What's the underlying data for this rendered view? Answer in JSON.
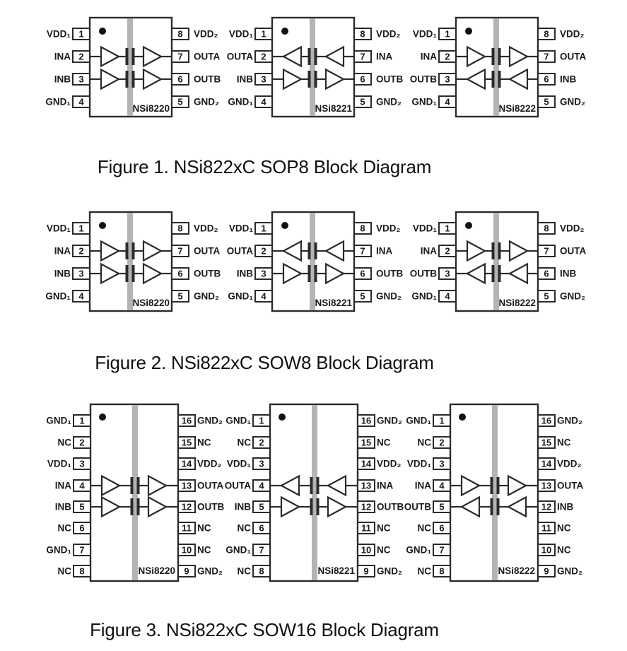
{
  "colors": {
    "line": "#2b2b2b",
    "barrier": "#b4b4b4",
    "body_fill": "#ffffff",
    "text": "#1a1a1a",
    "dot": "#111111",
    "background": "#ffffff"
  },
  "figures": [
    {
      "caption": "Figure 1. NSi822xC SOP8 Block Diagram",
      "pin_count": 8,
      "chips": [
        {
          "name": "NSi8220",
          "left_pins": [
            {
              "label": "VDD₁",
              "num": "1"
            },
            {
              "label": "INA",
              "num": "2"
            },
            {
              "label": "INB",
              "num": "3"
            },
            {
              "label": "GND₁",
              "num": "4"
            }
          ],
          "right_pins": [
            {
              "label": "VDD₂",
              "num": "8"
            },
            {
              "label": "OUTA",
              "num": "7"
            },
            {
              "label": "OUTB",
              "num": "6"
            },
            {
              "label": "GND₂",
              "num": "5"
            }
          ],
          "channels": [
            {
              "channel": "A",
              "direction": "left-to-right"
            },
            {
              "channel": "B",
              "direction": "left-to-right"
            }
          ]
        },
        {
          "name": "NSi8221",
          "left_pins": [
            {
              "label": "VDD₁",
              "num": "1"
            },
            {
              "label": "OUTA",
              "num": "2"
            },
            {
              "label": "INB",
              "num": "3"
            },
            {
              "label": "GND₁",
              "num": "4"
            }
          ],
          "right_pins": [
            {
              "label": "VDD₂",
              "num": "8"
            },
            {
              "label": "INA",
              "num": "7"
            },
            {
              "label": "OUTB",
              "num": "6"
            },
            {
              "label": "GND₂",
              "num": "5"
            }
          ],
          "channels": [
            {
              "channel": "A",
              "direction": "right-to-left"
            },
            {
              "channel": "B",
              "direction": "left-to-right"
            }
          ]
        },
        {
          "name": "NSi8222",
          "left_pins": [
            {
              "label": "VDD₁",
              "num": "1"
            },
            {
              "label": "INA",
              "num": "2"
            },
            {
              "label": "OUTB",
              "num": "3"
            },
            {
              "label": "GND₁",
              "num": "4"
            }
          ],
          "right_pins": [
            {
              "label": "VDD₂",
              "num": "8"
            },
            {
              "label": "OUTA",
              "num": "7"
            },
            {
              "label": "INB",
              "num": "6"
            },
            {
              "label": "GND₂",
              "num": "5"
            }
          ],
          "channels": [
            {
              "channel": "A",
              "direction": "left-to-right"
            },
            {
              "channel": "B",
              "direction": "right-to-left"
            }
          ]
        }
      ]
    },
    {
      "caption": "Figure 2. NSi822xC SOW8 Block Diagram",
      "pin_count": 8,
      "chips": [
        {
          "name": "NSi8220",
          "left_pins": [
            {
              "label": "VDD₁",
              "num": "1"
            },
            {
              "label": "INA",
              "num": "2"
            },
            {
              "label": "INB",
              "num": "3"
            },
            {
              "label": "GND₁",
              "num": "4"
            }
          ],
          "right_pins": [
            {
              "label": "VDD₂",
              "num": "8"
            },
            {
              "label": "OUTA",
              "num": "7"
            },
            {
              "label": "OUTB",
              "num": "6"
            },
            {
              "label": "GND₂",
              "num": "5"
            }
          ],
          "channels": [
            {
              "channel": "A",
              "direction": "left-to-right"
            },
            {
              "channel": "B",
              "direction": "left-to-right"
            }
          ]
        },
        {
          "name": "NSi8221",
          "left_pins": [
            {
              "label": "VDD₁",
              "num": "1"
            },
            {
              "label": "OUTA",
              "num": "2"
            },
            {
              "label": "INB",
              "num": "3"
            },
            {
              "label": "GND₁",
              "num": "4"
            }
          ],
          "right_pins": [
            {
              "label": "VDD₂",
              "num": "8"
            },
            {
              "label": "INA",
              "num": "7"
            },
            {
              "label": "OUTB",
              "num": "6"
            },
            {
              "label": "GND₂",
              "num": "5"
            }
          ],
          "channels": [
            {
              "channel": "A",
              "direction": "right-to-left"
            },
            {
              "channel": "B",
              "direction": "left-to-right"
            }
          ]
        },
        {
          "name": "NSi8222",
          "left_pins": [
            {
              "label": "VDD₁",
              "num": "1"
            },
            {
              "label": "INA",
              "num": "2"
            },
            {
              "label": "OUTB",
              "num": "3"
            },
            {
              "label": "GND₁",
              "num": "4"
            }
          ],
          "right_pins": [
            {
              "label": "VDD₂",
              "num": "8"
            },
            {
              "label": "OUTA",
              "num": "7"
            },
            {
              "label": "INB",
              "num": "6"
            },
            {
              "label": "GND₂",
              "num": "5"
            }
          ],
          "channels": [
            {
              "channel": "A",
              "direction": "left-to-right"
            },
            {
              "channel": "B",
              "direction": "right-to-left"
            }
          ]
        }
      ]
    },
    {
      "caption": "Figure 3. NSi822xC SOW16 Block Diagram",
      "pin_count": 16,
      "chips": [
        {
          "name": "NSi8220",
          "left_pins": [
            {
              "label": "GND₁",
              "num": "1"
            },
            {
              "label": "NC",
              "num": "2"
            },
            {
              "label": "VDD₁",
              "num": "3"
            },
            {
              "label": "INA",
              "num": "4"
            },
            {
              "label": "INB",
              "num": "5"
            },
            {
              "label": "NC",
              "num": "6"
            },
            {
              "label": "GND₁",
              "num": "7"
            },
            {
              "label": "NC",
              "num": "8"
            }
          ],
          "right_pins": [
            {
              "label": "GND₂",
              "num": "16"
            },
            {
              "label": "NC",
              "num": "15"
            },
            {
              "label": "VDD₂",
              "num": "14"
            },
            {
              "label": "OUTA",
              "num": "13"
            },
            {
              "label": "OUTB",
              "num": "12"
            },
            {
              "label": "NC",
              "num": "11"
            },
            {
              "label": "NC",
              "num": "10"
            },
            {
              "label": "GND₂",
              "num": "9"
            }
          ],
          "channels": [
            {
              "channel": "A",
              "direction": "left-to-right"
            },
            {
              "channel": "B",
              "direction": "left-to-right"
            }
          ]
        },
        {
          "name": "NSi8221",
          "left_pins": [
            {
              "label": "GND₁",
              "num": "1"
            },
            {
              "label": "NC",
              "num": "2"
            },
            {
              "label": "VDD₁",
              "num": "3"
            },
            {
              "label": "OUTA",
              "num": "4"
            },
            {
              "label": "INB",
              "num": "5"
            },
            {
              "label": "NC",
              "num": "6"
            },
            {
              "label": "GND₁",
              "num": "7"
            },
            {
              "label": "NC",
              "num": "8"
            }
          ],
          "right_pins": [
            {
              "label": "GND₂",
              "num": "16"
            },
            {
              "label": "NC",
              "num": "15"
            },
            {
              "label": "VDD₂",
              "num": "14"
            },
            {
              "label": "INA",
              "num": "13"
            },
            {
              "label": "OUTB",
              "num": "12"
            },
            {
              "label": "NC",
              "num": "11"
            },
            {
              "label": "NC",
              "num": "10"
            },
            {
              "label": "GND₂",
              "num": "9"
            }
          ],
          "channels": [
            {
              "channel": "A",
              "direction": "right-to-left"
            },
            {
              "channel": "B",
              "direction": "left-to-right"
            }
          ]
        },
        {
          "name": "NSi8222",
          "left_pins": [
            {
              "label": "GND₁",
              "num": "1"
            },
            {
              "label": "NC",
              "num": "2"
            },
            {
              "label": "VDD₁",
              "num": "3"
            },
            {
              "label": "INA",
              "num": "4"
            },
            {
              "label": "OUTB",
              "num": "5"
            },
            {
              "label": "NC",
              "num": "6"
            },
            {
              "label": "GND₁",
              "num": "7"
            },
            {
              "label": "NC",
              "num": "8"
            }
          ],
          "right_pins": [
            {
              "label": "GND₂",
              "num": "16"
            },
            {
              "label": "NC",
              "num": "15"
            },
            {
              "label": "VDD₂",
              "num": "14"
            },
            {
              "label": "OUTA",
              "num": "13"
            },
            {
              "label": "INB",
              "num": "12"
            },
            {
              "label": "NC",
              "num": "11"
            },
            {
              "label": "NC",
              "num": "10"
            },
            {
              "label": "GND₂",
              "num": "9"
            }
          ],
          "channels": [
            {
              "channel": "A",
              "direction": "left-to-right"
            },
            {
              "channel": "B",
              "direction": "right-to-left"
            }
          ]
        }
      ]
    }
  ]
}
